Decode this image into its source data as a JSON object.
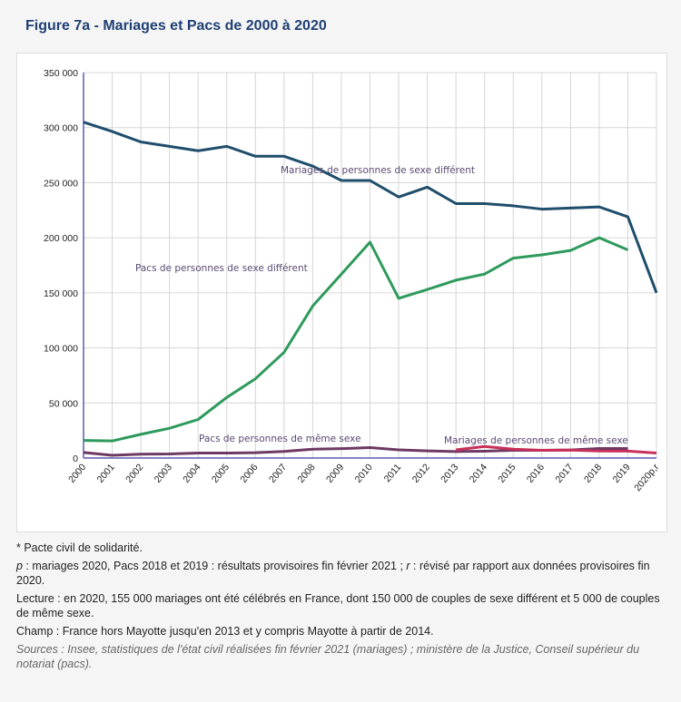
{
  "title": "Figure 7a - Mariages et Pacs de 2000 à 2020",
  "chart_data": {
    "type": "line",
    "categories": [
      "2000",
      "2001",
      "2002",
      "2003",
      "2004",
      "2005",
      "2006",
      "2007",
      "2008",
      "2009",
      "2010",
      "2011",
      "2012",
      "2013",
      "2014",
      "2015",
      "2016",
      "2017",
      "2018",
      "2019",
      "2020p,r"
    ],
    "ylim": [
      0,
      350000
    ],
    "yticks": [
      0,
      50000,
      100000,
      150000,
      200000,
      250000,
      300000,
      350000
    ],
    "ytick_labels": [
      "0",
      "50 000",
      "100 000",
      "150 000",
      "200 000",
      "250 000",
      "300 000",
      "350 000"
    ],
    "grid": true,
    "series": [
      {
        "name": "Mariages de personnes de sexe différent",
        "color": "#1f4e6b",
        "values": [
          305000,
          296500,
          287000,
          283000,
          279000,
          283000,
          274000,
          274000,
          265000,
          252000,
          252000,
          237000,
          246000,
          231000,
          231000,
          229000,
          226000,
          227000,
          228000,
          219000,
          150000
        ]
      },
      {
        "name": "Pacs de personnes de sexe différent",
        "color": "#2e9a5c",
        "values": [
          16000,
          15500,
          21500,
          27000,
          35000,
          55000,
          72000,
          96000,
          138000,
          167000,
          196000,
          145000,
          153000,
          161500,
          167000,
          181500,
          184500,
          188500,
          200000,
          189000,
          null
        ]
      },
      {
        "name": "Pacs de personnes de même sexe",
        "color": "#6e3a63",
        "values": [
          5000,
          2500,
          3500,
          3700,
          4500,
          4500,
          4800,
          6000,
          8000,
          8500,
          9500,
          7400,
          6500,
          5900,
          6200,
          7000,
          7000,
          7300,
          8600,
          8600,
          null
        ]
      },
      {
        "name": "Mariages de personnes de même sexe",
        "color": "#c8305a",
        "values": [
          null,
          null,
          null,
          null,
          null,
          null,
          null,
          null,
          null,
          null,
          null,
          null,
          null,
          7400,
          10500,
          8000,
          7000,
          7200,
          6400,
          6300,
          4500
        ]
      }
    ]
  },
  "notes": {
    "n1": "* Pacte civil de solidarité.",
    "n2_p": "p",
    "n2_a": " : mariages 2020, Pacs 2018 et 2019 : résultats provisoires fin février 2021 ; ",
    "n2_r": "r",
    "n2_b": " : révisé par rapport aux données provisoires fin 2020.",
    "n3": "Lecture : en 2020, 155 000 mariages ont été célébrés en France, dont 150 000 de couples de sexe différent et 5 000 de couples de même sexe.",
    "n4": "Champ : France hors Mayotte jusqu'en 2013 et y compris Mayotte à partir de 2014.",
    "n5": "Sources : Insee, statistiques de l'état civil réalisées fin février 2021 (mariages) ; ministère de la Justice, Conseil supérieur du notariat (pacs)."
  }
}
